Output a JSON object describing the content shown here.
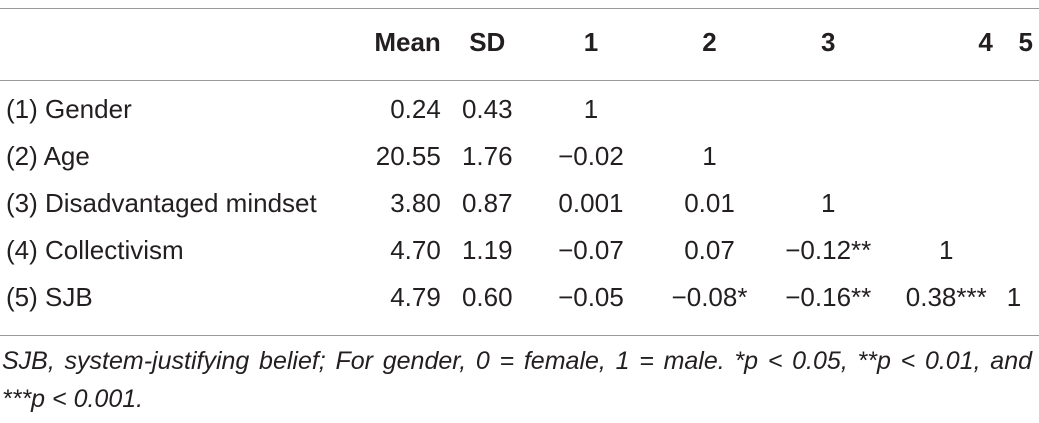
{
  "table": {
    "headers": [
      "",
      "Mean",
      "SD",
      "1",
      "2",
      "3",
      "4",
      "5"
    ],
    "rows": [
      {
        "label": "(1) Gender",
        "mean": "0.24",
        "sd": "0.43",
        "c1": "1",
        "c2": "",
        "c3": "",
        "c4": "",
        "c5": ""
      },
      {
        "label": "(2) Age",
        "mean": "20.55",
        "sd": "1.76",
        "c1": "−0.02",
        "c2": "1",
        "c3": "",
        "c4": "",
        "c5": ""
      },
      {
        "label": "(3) Disadvantaged mindset",
        "mean": "3.80",
        "sd": "0.87",
        "c1": "0.001",
        "c2": "0.01",
        "c3": "1",
        "c4": "",
        "c5": ""
      },
      {
        "label": "(4) Collectivism",
        "mean": "4.70",
        "sd": "1.19",
        "c1": "−0.07",
        "c2": "0.07",
        "c3": "−0.12**",
        "c4": "1",
        "c5": ""
      },
      {
        "label": "(5) SJB",
        "mean": "4.79",
        "sd": "0.60",
        "c1": "−0.05",
        "c2": "−0.08*",
        "c3": "−0.16**",
        "c4": "0.38***",
        "c5": "1"
      }
    ]
  },
  "footnote": "SJB, system-justifying belief; For gender, 0 = female, 1 = male. *p < 0.05, **p < 0.01, and ***p < 0.001."
}
